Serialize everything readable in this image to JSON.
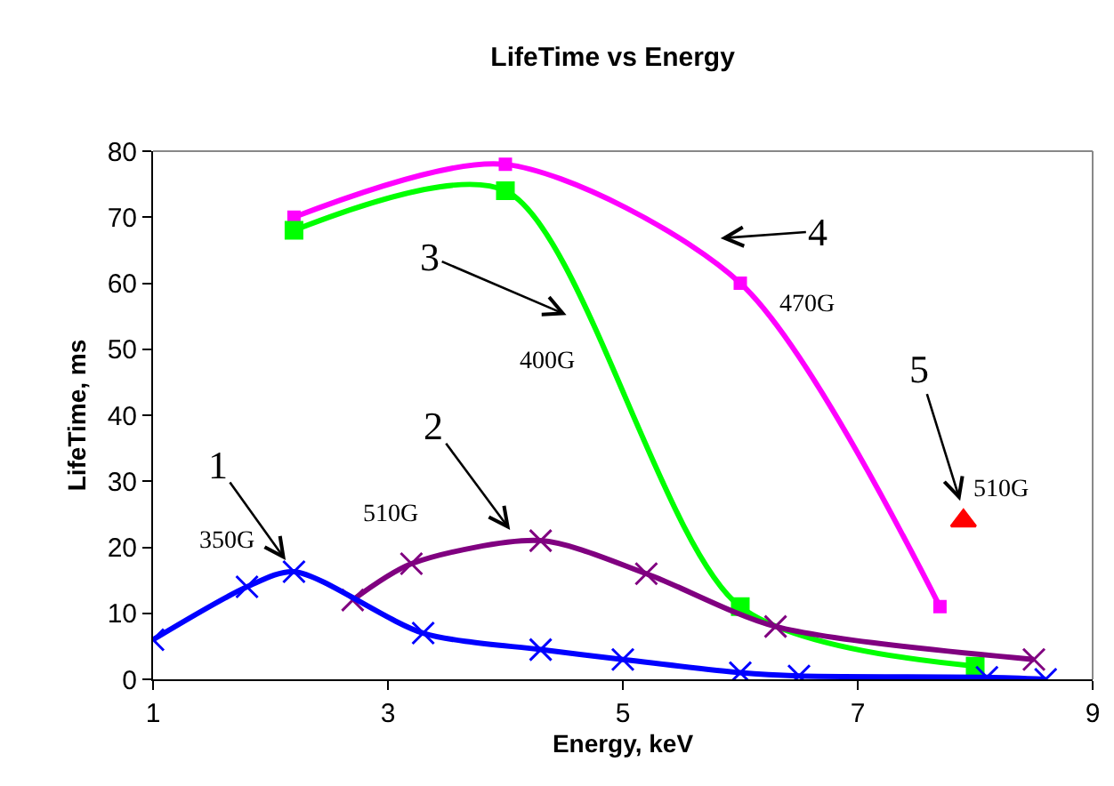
{
  "chart_data": {
    "type": "line",
    "title": "LifeTime vs Energy",
    "xlabel": "Energy, keV",
    "ylabel": "LifeTime, ms",
    "xlim": [
      1,
      9
    ],
    "xticks": [
      1,
      3,
      5,
      7,
      9
    ],
    "ylim": [
      0,
      80
    ],
    "yticks": [
      0,
      10,
      20,
      30,
      40,
      50,
      60,
      70,
      80
    ],
    "grid": false,
    "series": [
      {
        "color": "#0000ff",
        "marker": "cross",
        "x": [
          1.0,
          1.8,
          2.2,
          3.3,
          4.3,
          5.0,
          6.0,
          6.5,
          8.1,
          8.6
        ],
        "values": [
          6,
          14,
          16.3,
          7,
          4.5,
          3,
          1,
          0.5,
          0.3,
          0
        ]
      },
      {
        "color": "#800080",
        "marker": "cross",
        "x": [
          2.7,
          3.2,
          4.3,
          5.2,
          6.3,
          8.5
        ],
        "values": [
          12,
          17.5,
          21,
          16,
          8,
          3
        ]
      },
      {
        "color": "#00ff00",
        "marker": "square",
        "x": [
          2.2,
          4.0,
          6.0,
          8.0
        ],
        "values": [
          68,
          74,
          11,
          2
        ]
      },
      {
        "color": "#ff00ff",
        "marker": "square",
        "x": [
          2.2,
          4.0,
          6.0,
          7.7
        ],
        "values": [
          70,
          78,
          60,
          11
        ]
      },
      {
        "type": "scatter",
        "color": "#ff0000",
        "marker": "triangle",
        "x": [
          7.9
        ],
        "values": [
          24
        ]
      }
    ],
    "annotations": [
      {
        "text": "1",
        "x": 2.2,
        "y": 16.3
      },
      "2",
      "3",
      "4",
      "5",
      "350G",
      "510G",
      "400G",
      "470G",
      "510G"
    ]
  }
}
